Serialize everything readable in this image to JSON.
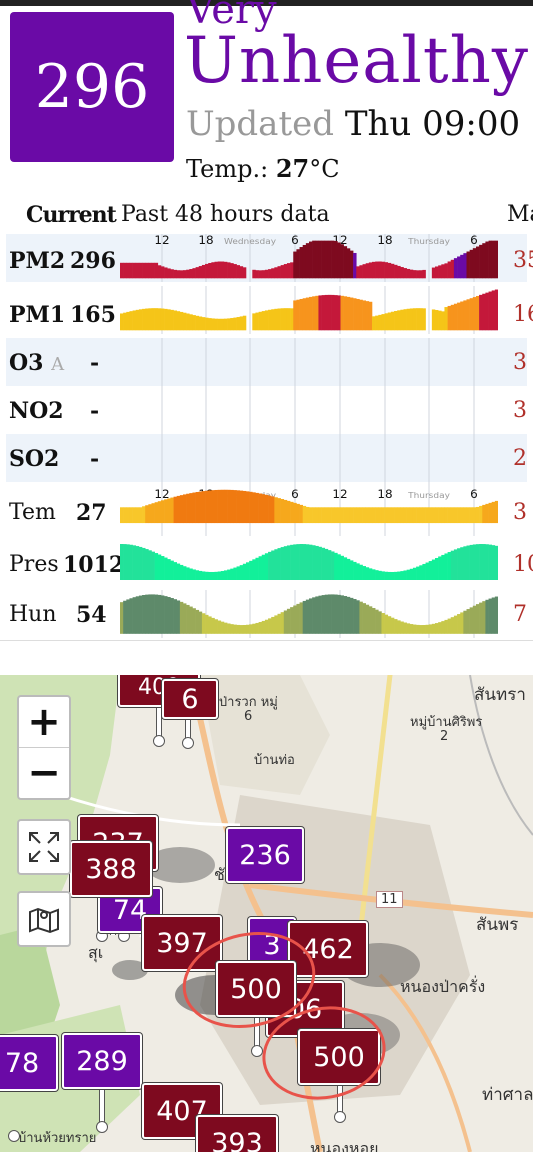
{
  "summary": {
    "aqi": "296",
    "status_line1": "Very",
    "status_line2": "Unhealthy",
    "updated_label": "Updated",
    "updated_time": "Thu 09:00",
    "temp_label": "Temp.:",
    "temp_value": "27",
    "temp_unit": "°C",
    "aqi_color": "#6a0aa6"
  },
  "table": {
    "header_current": "Current",
    "header_past": "Past 48 hours data",
    "header_max": "Ma",
    "time_labels": [
      "12",
      "18",
      "Wednesday",
      "6",
      "12",
      "18",
      "Thursday",
      "6"
    ],
    "rows": [
      {
        "label": "PM2",
        "value": "296",
        "max": "35"
      },
      {
        "label": "PM1",
        "value": "165",
        "max": "16"
      },
      {
        "label": "O3",
        "sub": "A",
        "value": "-",
        "max": "3"
      },
      {
        "label": "NO2",
        "value": "-",
        "max": "3"
      },
      {
        "label": "SO2",
        "value": "-",
        "max": "2"
      },
      {
        "label": "Tem",
        "value": "27",
        "max": "3"
      },
      {
        "label": "Pres",
        "value": "1012",
        "max": "10"
      },
      {
        "label": "Hun",
        "value": "54",
        "max": "7"
      }
    ]
  },
  "map": {
    "zoom_in": "+",
    "zoom_out": "−",
    "labels": [
      "สันทรา",
      "หมู่บ้านศิริพร",
      "2",
      "นป่ารวก หมู่",
      "6",
      "บ้านท่อ",
      "11",
      "สันพร",
      "หนองป่าครั่ง",
      "ท่าศาล",
      "บ้านห้วยทราย",
      "ชั",
      "สุเ",
      "หนองหอย"
    ],
    "markers": [
      "400",
      "6",
      "237",
      "388",
      "236",
      "74",
      "397",
      "462",
      "500",
      "06",
      "500",
      "78",
      "289",
      "407",
      "393",
      "3"
    ]
  }
}
